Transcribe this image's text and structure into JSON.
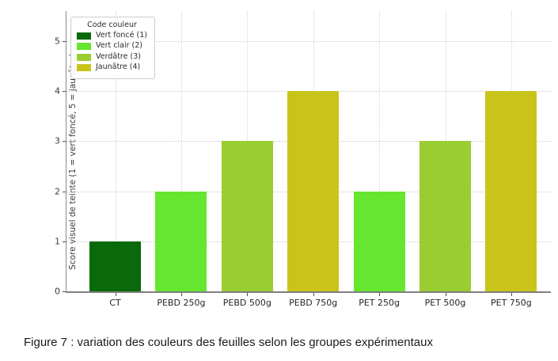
{
  "caption": "Figure 7 : variation des couleurs des feuilles selon les groupes expérimentaux",
  "chart_data": {
    "type": "bar",
    "title": "",
    "xlabel": "",
    "ylabel": "Score visuel de teinte (1 = vert foncé, 5 = jaunâtre)",
    "categories": [
      "CT",
      "PEBD 250g",
      "PEBD 500g",
      "PEBD 750g",
      "PET 250g",
      "PET 500g",
      "PET 750g"
    ],
    "values": [
      1,
      2,
      3,
      4,
      2,
      3,
      4
    ],
    "bar_colors": [
      "#0a690a",
      "#66e62e",
      "#9acd32",
      "#c9c41a",
      "#66e62e",
      "#9acd32",
      "#c9c41a"
    ],
    "ylim": [
      0,
      5.6
    ],
    "yticks": [
      0,
      1,
      2,
      3,
      4,
      5
    ],
    "grid": "dotted, horizontal and vertical",
    "legend_position": "upper left",
    "legend": {
      "title": "Code couleur",
      "entries": [
        {
          "label": "Vert foncé (1)",
          "color": "#0a690a"
        },
        {
          "label": "Vert clair (2)",
          "color": "#66e62e"
        },
        {
          "label": "Verdâtre (3)",
          "color": "#9acd32"
        },
        {
          "label": "Jaunâtre (4)",
          "color": "#c9c41a"
        }
      ]
    }
  }
}
